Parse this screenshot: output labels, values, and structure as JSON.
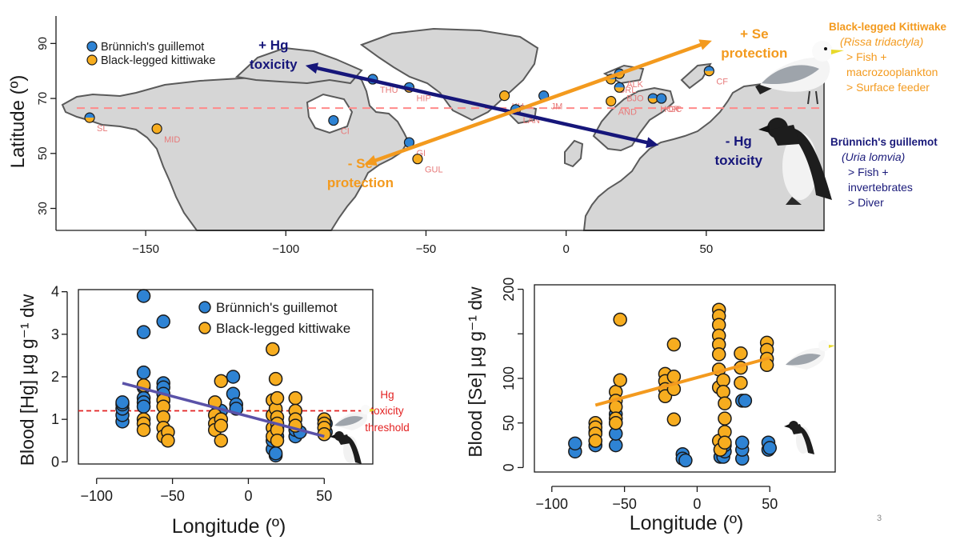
{
  "colors": {
    "guillemot": "#2e83d4",
    "kittiwake": "#f7ad1f",
    "hg_arrow": "#16167a",
    "se_arrow": "#f39a1e",
    "threshold": "#e32222",
    "land": "#d6d6d6",
    "coast": "#5a5a5a",
    "site_label": "#e77a7a"
  },
  "legend": {
    "guillemot": "Brünnich's guillemot",
    "kittiwake": "Black-legged kittiwake"
  },
  "map": {
    "ylabel": "Latitude (º)",
    "xlim": [
      -182,
      92
    ],
    "ylim": [
      22,
      100
    ],
    "xticks": [
      -150,
      -100,
      -50,
      0,
      50
    ],
    "yticks": [
      30,
      50,
      70,
      90
    ],
    "arctic_circle_lat": 66.5,
    "sites": [
      {
        "code": "SL",
        "lon": -170,
        "lat": 63,
        "species": "both"
      },
      {
        "code": "MID",
        "lon": -146,
        "lat": 59,
        "species": "kittiwake"
      },
      {
        "code": "CI",
        "lon": -83,
        "lat": 62,
        "species": "guillemot"
      },
      {
        "code": "THU",
        "lon": -69,
        "lat": 77,
        "species": "guillemot"
      },
      {
        "code": "HIP",
        "lon": -56,
        "lat": 74,
        "species": "both"
      },
      {
        "code": "GI",
        "lon": -56,
        "lat": 54,
        "species": "guillemot"
      },
      {
        "code": "GUL",
        "lon": -53,
        "lat": 48,
        "species": "kittiwake"
      },
      {
        "code": "KH",
        "lon": -22,
        "lat": 71,
        "species": "kittiwake"
      },
      {
        "code": "LAN",
        "lon": -18,
        "lat": 66,
        "species": "both"
      },
      {
        "code": "JM",
        "lon": -8,
        "lat": 71,
        "species": "guillemot"
      },
      {
        "code": "GRL",
        "lon": 16,
        "lat": 77,
        "species": "both"
      },
      {
        "code": "ALK",
        "lon": 19,
        "lat": 79,
        "species": "both"
      },
      {
        "code": "BJO",
        "lon": 19,
        "lat": 74,
        "species": "both"
      },
      {
        "code": "AND",
        "lon": 16,
        "lat": 69,
        "species": "kittiwake"
      },
      {
        "code": "HOR",
        "lon": 31,
        "lat": 70,
        "species": "both"
      },
      {
        "code": "GC",
        "lon": 34,
        "lat": 70,
        "species": "guillemot"
      },
      {
        "code": "CF",
        "lon": 51,
        "lat": 80,
        "species": "both"
      }
    ],
    "hg_arrow": {
      "from": [
        -93,
        82
      ],
      "to": [
        33,
        53
      ],
      "top_label": [
        "+ Hg",
        "toxicity"
      ],
      "bottom_label": [
        "- Hg",
        "toxicity"
      ]
    },
    "se_arrow": {
      "from": [
        -72,
        46
      ],
      "to": [
        52,
        91
      ],
      "top_label": [
        "+ Se",
        "protection"
      ],
      "bottom_label": [
        "- Se",
        "protection"
      ]
    }
  },
  "kittiwake_info": {
    "name": "Black-legged Kittiwake",
    "sci": "(Rissa tridactyla)",
    "features": [
      "> Fish +",
      "macrozooplankton",
      "> Surface feeder"
    ]
  },
  "guillemot_info": {
    "name": "Brünnich's guillemot",
    "sci": "(Uria lomvia)",
    "features": [
      "> Fish +",
      "invertebrates",
      "> Diver"
    ]
  },
  "hg_plot": {
    "xlabel": "Longitude (º)",
    "ylabel": "Blood [Hg] µg g⁻¹ dw",
    "xlim": [
      -112,
      82
    ],
    "ylim": [
      -0.05,
      4.05
    ],
    "xticks": [
      -100,
      -50,
      0,
      50
    ],
    "yticks": [
      0,
      1,
      2,
      3,
      4
    ],
    "threshold_value": 1.2,
    "threshold_label": [
      "Hg",
      "toxicity",
      "threshold"
    ],
    "regression": {
      "x0": -83,
      "y0": 1.85,
      "x1": 50,
      "y1": 0.6,
      "color": "#5a52a8"
    },
    "series": [
      {
        "name": "Brünnich's guillemot",
        "color": "#2e83d4",
        "points": [
          [
            -83,
            0.95
          ],
          [
            -83,
            1.1
          ],
          [
            -83,
            1.25
          ],
          [
            -83,
            1.35
          ],
          [
            -83,
            1.4
          ],
          [
            -69,
            3.9
          ],
          [
            -69,
            3.05
          ],
          [
            -69,
            2.1
          ],
          [
            -69,
            1.75
          ],
          [
            -69,
            1.5
          ],
          [
            -69,
            1.4
          ],
          [
            -69,
            1.3
          ],
          [
            -56,
            3.3
          ],
          [
            -56,
            1.85
          ],
          [
            -56,
            1.75
          ],
          [
            -56,
            1.6
          ],
          [
            -56,
            1.45
          ],
          [
            -18,
            1.2
          ],
          [
            -10,
            2.0
          ],
          [
            -10,
            1.6
          ],
          [
            -8,
            1.35
          ],
          [
            -8,
            1.25
          ],
          [
            16,
            0.3
          ],
          [
            16,
            0.5
          ],
          [
            18,
            0.15
          ],
          [
            18,
            0.2
          ],
          [
            19,
            0.6
          ],
          [
            19,
            0.8
          ],
          [
            31,
            0.6
          ],
          [
            31,
            0.75
          ],
          [
            34,
            0.7
          ],
          [
            51,
            0.7
          ],
          [
            51,
            0.9
          ]
        ]
      },
      {
        "name": "Black-legged kittiwake",
        "color": "#f7ad1f",
        "points": [
          [
            -69,
            1.8
          ],
          [
            -69,
            1.0
          ],
          [
            -69,
            0.9
          ],
          [
            -69,
            0.75
          ],
          [
            -56,
            1.45
          ],
          [
            -56,
            1.3
          ],
          [
            -56,
            1.05
          ],
          [
            -56,
            0.8
          ],
          [
            -56,
            0.6
          ],
          [
            -53,
            0.7
          ],
          [
            -53,
            0.5
          ],
          [
            -22,
            1.4
          ],
          [
            -22,
            1.1
          ],
          [
            -22,
            0.9
          ],
          [
            -22,
            0.75
          ],
          [
            -18,
            1.9
          ],
          [
            -18,
            1.0
          ],
          [
            -18,
            0.85
          ],
          [
            -18,
            0.5
          ],
          [
            16,
            2.65
          ],
          [
            16,
            1.45
          ],
          [
            16,
            1.1
          ],
          [
            16,
            0.8
          ],
          [
            16,
            0.6
          ],
          [
            18,
            1.95
          ],
          [
            18,
            1.25
          ],
          [
            19,
            1.5
          ],
          [
            19,
            1.05
          ],
          [
            19,
            0.9
          ],
          [
            19,
            0.75
          ],
          [
            19,
            0.5
          ],
          [
            31,
            1.5
          ],
          [
            31,
            1.2
          ],
          [
            31,
            1.0
          ],
          [
            31,
            0.85
          ],
          [
            50,
            1.0
          ],
          [
            50,
            0.9
          ],
          [
            50,
            0.8
          ],
          [
            50,
            0.65
          ]
        ]
      }
    ]
  },
  "se_plot": {
    "xlabel": "Longitude (º)",
    "ylabel": "Blood [Se] µg g⁻¹ dw",
    "xlim": [
      -112,
      95
    ],
    "ylim": [
      -5,
      205
    ],
    "xticks": [
      -100,
      -50,
      0,
      50
    ],
    "yticks": [
      0,
      50,
      100,
      150,
      200
    ],
    "ytick_labels": [
      "0",
      "50",
      "100",
      "",
      "200"
    ],
    "regression": {
      "x0": -70,
      "y0": 70,
      "x1": 50,
      "y1": 123,
      "color": "#f39a1e"
    },
    "series": [
      {
        "name": "Brünnich's guillemot",
        "color": "#2e83d4",
        "points": [
          [
            -84,
            18
          ],
          [
            -84,
            27
          ],
          [
            -70,
            25
          ],
          [
            -70,
            30
          ],
          [
            -70,
            40
          ],
          [
            -56,
            25
          ],
          [
            -56,
            38
          ],
          [
            -56,
            50
          ],
          [
            -56,
            60
          ],
          [
            -10,
            15
          ],
          [
            -10,
            10
          ],
          [
            -8,
            8
          ],
          [
            16,
            12
          ],
          [
            16,
            20
          ],
          [
            16,
            28
          ],
          [
            18,
            12
          ],
          [
            19,
            18
          ],
          [
            19,
            25
          ],
          [
            31,
            10
          ],
          [
            31,
            20
          ],
          [
            31,
            28
          ],
          [
            31,
            75
          ],
          [
            33,
            75
          ],
          [
            49,
            20
          ],
          [
            49,
            28
          ],
          [
            50,
            22
          ]
        ]
      },
      {
        "name": "Black-legged kittiwake",
        "color": "#f7ad1f",
        "points": [
          [
            -70,
            50
          ],
          [
            -70,
            45
          ],
          [
            -70,
            38
          ],
          [
            -70,
            30
          ],
          [
            -56,
            85
          ],
          [
            -56,
            75
          ],
          [
            -56,
            68
          ],
          [
            -56,
            55
          ],
          [
            -56,
            50
          ],
          [
            -53,
            166
          ],
          [
            -53,
            98
          ],
          [
            -22,
            105
          ],
          [
            -22,
            97
          ],
          [
            -22,
            88
          ],
          [
            -22,
            80
          ],
          [
            -16,
            138
          ],
          [
            -16,
            102
          ],
          [
            -16,
            88
          ],
          [
            -16,
            54
          ],
          [
            15,
            177
          ],
          [
            15,
            170
          ],
          [
            15,
            160
          ],
          [
            15,
            148
          ],
          [
            15,
            138
          ],
          [
            15,
            127
          ],
          [
            15,
            110
          ],
          [
            15,
            90
          ],
          [
            15,
            30
          ],
          [
            16,
            20
          ],
          [
            18,
            98
          ],
          [
            18,
            85
          ],
          [
            19,
            72
          ],
          [
            19,
            55
          ],
          [
            19,
            40
          ],
          [
            19,
            28
          ],
          [
            30,
            128
          ],
          [
            30,
            112
          ],
          [
            30,
            95
          ],
          [
            48,
            140
          ],
          [
            48,
            132
          ],
          [
            48,
            122
          ],
          [
            48,
            115
          ]
        ]
      }
    ]
  },
  "page_number": "3"
}
